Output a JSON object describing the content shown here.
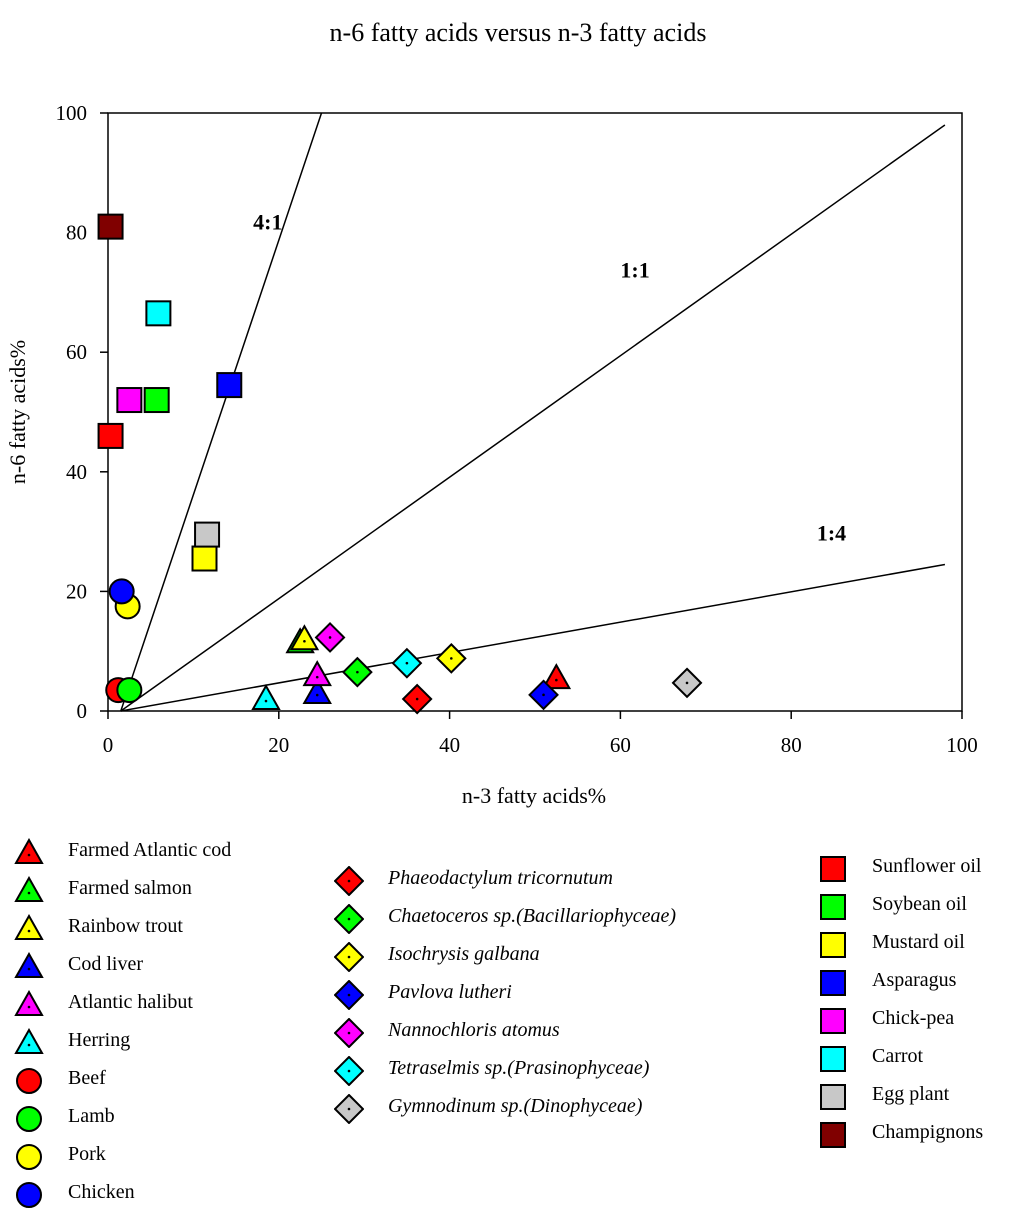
{
  "chart_data": {
    "type": "scatter",
    "title": "n-6 fatty acids versus n-3 fatty acids",
    "xlabel": "n-3 fatty acids%",
    "ylabel": "n-6 fatty acids%",
    "xlim": [
      0,
      100
    ],
    "ylim": [
      0,
      100
    ],
    "xticks": [
      0,
      20,
      40,
      60,
      80,
      100
    ],
    "yticks": [
      0,
      20,
      40,
      60,
      80,
      100
    ],
    "ratio_lines": [
      {
        "label": "4:1",
        "x0": 1.5,
        "y0": 0,
        "x1": 25,
        "y1": 100
      },
      {
        "label": "1:1",
        "x0": 1.5,
        "y0": 0,
        "x1": 98,
        "y1": 98
      },
      {
        "label": "1:4",
        "x0": 1.5,
        "y0": 0,
        "x1": 98,
        "y1": 24.5
      }
    ],
    "ratio_label_positions": [
      {
        "label": "4:1",
        "x": 17,
        "y": 80.5
      },
      {
        "label": "1:1",
        "x": 60,
        "y": 72.5
      },
      {
        "label": "1:4",
        "x": 83,
        "y": 28.5
      }
    ],
    "series": [
      {
        "name": "Farmed Atlantic cod",
        "marker": "triangle",
        "color": "#ff0000",
        "italic": false,
        "x": 52.5,
        "y": 5.5
      },
      {
        "name": "Farmed salmon",
        "marker": "triangle",
        "color": "#00ff00",
        "italic": false,
        "x": 22.5,
        "y": 11.5
      },
      {
        "name": "Rainbow trout",
        "marker": "triangle",
        "color": "#ffff00",
        "italic": false,
        "x": 23,
        "y": 12
      },
      {
        "name": "Cod liver",
        "marker": "triangle",
        "color": "#0000ff",
        "italic": false,
        "x": 24.5,
        "y": 3
      },
      {
        "name": "Atlantic halibut",
        "marker": "triangle",
        "color": "#ff00ff",
        "italic": false,
        "x": 24.5,
        "y": 6
      },
      {
        "name": "Herring",
        "marker": "triangle",
        "color": "#00ffff",
        "italic": false,
        "x": 18.5,
        "y": 2
      },
      {
        "name": "Beef",
        "marker": "circle",
        "color": "#ff0000",
        "italic": false,
        "x": 1.2,
        "y": 3.5
      },
      {
        "name": "Lamb",
        "marker": "circle",
        "color": "#00ff00",
        "italic": false,
        "x": 2.5,
        "y": 3.5
      },
      {
        "name": "Pork",
        "marker": "circle",
        "color": "#ffff00",
        "italic": false,
        "x": 2.3,
        "y": 17.5
      },
      {
        "name": "Chicken",
        "marker": "circle",
        "color": "#0000ff",
        "italic": false,
        "x": 1.6,
        "y": 20
      },
      {
        "name": "Phaeodactylum tricornutum",
        "marker": "diamond",
        "color": "#ff0000",
        "italic": true,
        "x": 36.2,
        "y": 2
      },
      {
        "name": "Chaetoceros sp.(Bacillariophyceae)",
        "marker": "diamond",
        "color": "#00ff00",
        "italic": true,
        "x": 29.2,
        "y": 6.5
      },
      {
        "name": "Isochrysis galbana",
        "marker": "diamond",
        "color": "#ffff00",
        "italic": true,
        "x": 40.2,
        "y": 8.8
      },
      {
        "name": "Pavlova lutheri",
        "marker": "diamond",
        "color": "#0000ff",
        "italic": true,
        "x": 51,
        "y": 2.7
      },
      {
        "name": "Nannochloris atomus",
        "marker": "diamond",
        "color": "#ff00ff",
        "italic": true,
        "x": 26,
        "y": 12.3
      },
      {
        "name": "Tetraselmis sp.(Prasinophyceae)",
        "marker": "diamond",
        "color": "#00ffff",
        "italic": true,
        "x": 35,
        "y": 8
      },
      {
        "name": "Gymnodinum sp.(Dinophyceae)",
        "marker": "diamond",
        "color": "#c8c8c8",
        "italic": true,
        "x": 67.8,
        "y": 4.7
      },
      {
        "name": "Sunflower oil",
        "marker": "square",
        "color": "#ff0000",
        "italic": false,
        "x": 0.3,
        "y": 46
      },
      {
        "name": "Soybean oil",
        "marker": "square",
        "color": "#00ff00",
        "italic": false,
        "x": 5.7,
        "y": 52
      },
      {
        "name": "Mustard oil",
        "marker": "square",
        "color": "#ffff00",
        "italic": false,
        "x": 11.3,
        "y": 25.5
      },
      {
        "name": "Asparagus",
        "marker": "square",
        "color": "#0000ff",
        "italic": false,
        "x": 14.2,
        "y": 54.5
      },
      {
        "name": "Chick-pea",
        "marker": "square",
        "color": "#ff00ff",
        "italic": false,
        "x": 2.5,
        "y": 52
      },
      {
        "name": "Carrot",
        "marker": "square",
        "color": "#00ffff",
        "italic": false,
        "x": 5.9,
        "y": 66.5
      },
      {
        "name": "Egg plant",
        "marker": "square",
        "color": "#c8c8c8",
        "italic": false,
        "x": 11.6,
        "y": 29.5
      },
      {
        "name": "Champignons",
        "marker": "square",
        "color": "#800000",
        "italic": false,
        "x": 0.3,
        "y": 81
      }
    ],
    "legend": [
      [
        "Farmed Atlantic cod",
        "Farmed salmon",
        "Rainbow trout",
        "Cod liver",
        "Atlantic halibut",
        "Herring",
        "Beef",
        "Lamb",
        "Pork",
        "Chicken"
      ],
      [
        "Phaeodactylum tricornutum",
        "Chaetoceros sp.(Bacillariophyceae)",
        "Isochrysis galbana",
        "Pavlova lutheri",
        "Nannochloris atomus",
        "Tetraselmis sp.(Prasinophyceae)",
        "Gymnodinum sp.(Dinophyceae)"
      ],
      [
        "Sunflower oil",
        "Soybean oil",
        "Mustard oil",
        "Asparagus",
        "Chick-pea",
        "Carrot",
        "Egg plant",
        "Champignons"
      ]
    ]
  }
}
